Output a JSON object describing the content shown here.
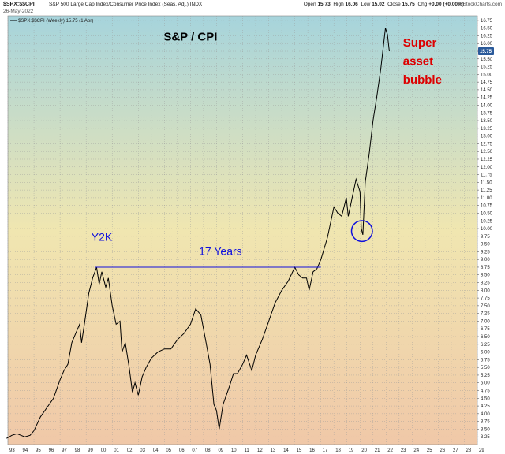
{
  "header": {
    "symbol": "$SPX:$$CPI",
    "description": "S&P 500 Large Cap Index/Consumer Price Index (Seas. Adj.) INDX",
    "date": "26-May-2022",
    "ohlc": [
      {
        "label": "Open",
        "value": "15.73"
      },
      {
        "label": "High",
        "value": "16.06"
      },
      {
        "label": "Low",
        "value": "15.02"
      },
      {
        "label": "Close",
        "value": "15.75"
      },
      {
        "label": "Chg",
        "value": "+0.00 (+0.00%)"
      }
    ],
    "brand": "© StockCharts.com"
  },
  "legend_text": "$SPX:$$CPI (Weekly) 15.75 (1 Apr)",
  "colors": {
    "line": "#000000",
    "annotation_blue": "#1010dd",
    "annotation_red": "#dd0000",
    "price_badge": "#2b5a9a",
    "bg_top": "#a6d4dc",
    "bg_mid": "#f0e6b0",
    "bg_bottom": "#f0c8a8"
  },
  "chart_data": {
    "type": "line",
    "title": "S&P / CPI",
    "xlabel": "",
    "ylabel": "",
    "x_range": [
      1993,
      2029
    ],
    "ylim": [
      3.0,
      16.9
    ],
    "x_tick_labels": [
      "93",
      "94",
      "95",
      "96",
      "97",
      "98",
      "99",
      "00",
      "01",
      "02",
      "03",
      "04",
      "05",
      "06",
      "07",
      "08",
      "09",
      "10",
      "11",
      "12",
      "13",
      "14",
      "15",
      "16",
      "17",
      "18",
      "19",
      "20",
      "21",
      "22",
      "23",
      "24",
      "25",
      "26",
      "27",
      "28",
      "29"
    ],
    "y_ticks": [
      3.25,
      3.5,
      3.75,
      4.0,
      4.25,
      4.5,
      4.75,
      5.0,
      5.25,
      5.5,
      5.75,
      6.0,
      6.25,
      6.5,
      6.75,
      7.0,
      7.25,
      7.5,
      7.75,
      8.0,
      8.25,
      8.5,
      8.75,
      9.0,
      9.25,
      9.5,
      9.75,
      10.0,
      10.25,
      10.5,
      10.75,
      11.0,
      11.25,
      11.5,
      11.75,
      12.0,
      12.25,
      12.5,
      12.75,
      13.0,
      13.25,
      13.5,
      13.75,
      14.0,
      14.25,
      14.5,
      14.75,
      15.0,
      15.25,
      15.5,
      15.75,
      16.0,
      16.25,
      16.5,
      16.75
    ],
    "current_value": "15.75",
    "series": [
      {
        "x": [
          1992.9,
          1993.3,
          1993.7,
          1994.0,
          1994.3,
          1994.7,
          1995.0,
          1995.5,
          1996.0,
          1996.5,
          1997.0,
          1997.3,
          1997.6,
          1997.9,
          1998.2,
          1998.5,
          1998.65,
          1998.9,
          1999.2,
          1999.5,
          1999.8,
          2000.0,
          2000.2,
          2000.5,
          2000.7,
          2001.0,
          2001.3,
          2001.6,
          2001.75,
          2002.0,
          2002.3,
          2002.55,
          2002.75,
          2003.0,
          2003.3,
          2003.6,
          2004.0,
          2004.5,
          2005.0,
          2005.5,
          2006.0,
          2006.5,
          2007.0,
          2007.4,
          2007.8,
          2008.2,
          2008.5,
          2008.8,
          2009.0,
          2009.2,
          2009.5,
          2010.0,
          2010.3,
          2010.6,
          2011.0,
          2011.3,
          2011.7,
          2012.0,
          2012.5,
          2013.0,
          2013.5,
          2014.0,
          2014.5,
          2015.0,
          2015.3,
          2015.6,
          2015.9,
          2016.1,
          2016.4,
          2016.7,
          2017.0,
          2017.5,
          2018.0,
          2018.3,
          2018.6,
          2018.95,
          2019.1,
          2019.4,
          2019.7,
          2020.0,
          2020.1,
          2020.22,
          2020.4,
          2020.7,
          2021.0,
          2021.3,
          2021.6,
          2021.95,
          2022.1,
          2022.25
        ],
        "y": [
          3.2,
          3.3,
          3.35,
          3.3,
          3.25,
          3.3,
          3.45,
          3.9,
          4.2,
          4.5,
          5.1,
          5.4,
          5.6,
          6.3,
          6.6,
          6.9,
          6.3,
          7.0,
          7.9,
          8.4,
          8.75,
          8.2,
          8.6,
          8.1,
          8.4,
          7.5,
          6.9,
          7.0,
          6.0,
          6.3,
          5.5,
          4.7,
          5.0,
          4.6,
          5.2,
          5.5,
          5.8,
          6.0,
          6.1,
          6.1,
          6.4,
          6.6,
          6.9,
          7.4,
          7.2,
          6.3,
          5.6,
          4.3,
          4.1,
          3.5,
          4.3,
          4.9,
          5.3,
          5.3,
          5.6,
          5.9,
          5.4,
          5.9,
          6.4,
          7.0,
          7.6,
          8.0,
          8.3,
          8.75,
          8.5,
          8.4,
          8.4,
          8.0,
          8.6,
          8.7,
          9.0,
          9.7,
          10.7,
          10.5,
          10.4,
          11.0,
          10.4,
          11.0,
          11.6,
          11.2,
          10.0,
          9.8,
          11.5,
          12.4,
          13.5,
          14.3,
          15.2,
          16.5,
          16.3,
          15.75
        ]
      }
    ],
    "annotations": [
      {
        "text": "Y2K",
        "x": 2000.2,
        "y": 9.6,
        "color": "#1010dd"
      },
      {
        "text": "17 Years",
        "x": 2009.3,
        "y": 9.15,
        "color": "#1010dd"
      },
      {
        "text": "Super",
        "x": 2023.3,
        "y": 15.9,
        "color": "#dd0000"
      },
      {
        "text": "asset",
        "x": 2023.3,
        "y": 15.3,
        "color": "#dd0000"
      },
      {
        "text": "bubble",
        "x": 2023.3,
        "y": 14.7,
        "color": "#dd0000"
      }
    ],
    "hline": {
      "x_start": 1999.7,
      "x_end": 2017.0,
      "y": 8.75
    },
    "circle": {
      "cx": 2020.15,
      "cy": 9.92,
      "r_data_x": 0.5
    },
    "grid": true,
    "legend": "top-left"
  }
}
